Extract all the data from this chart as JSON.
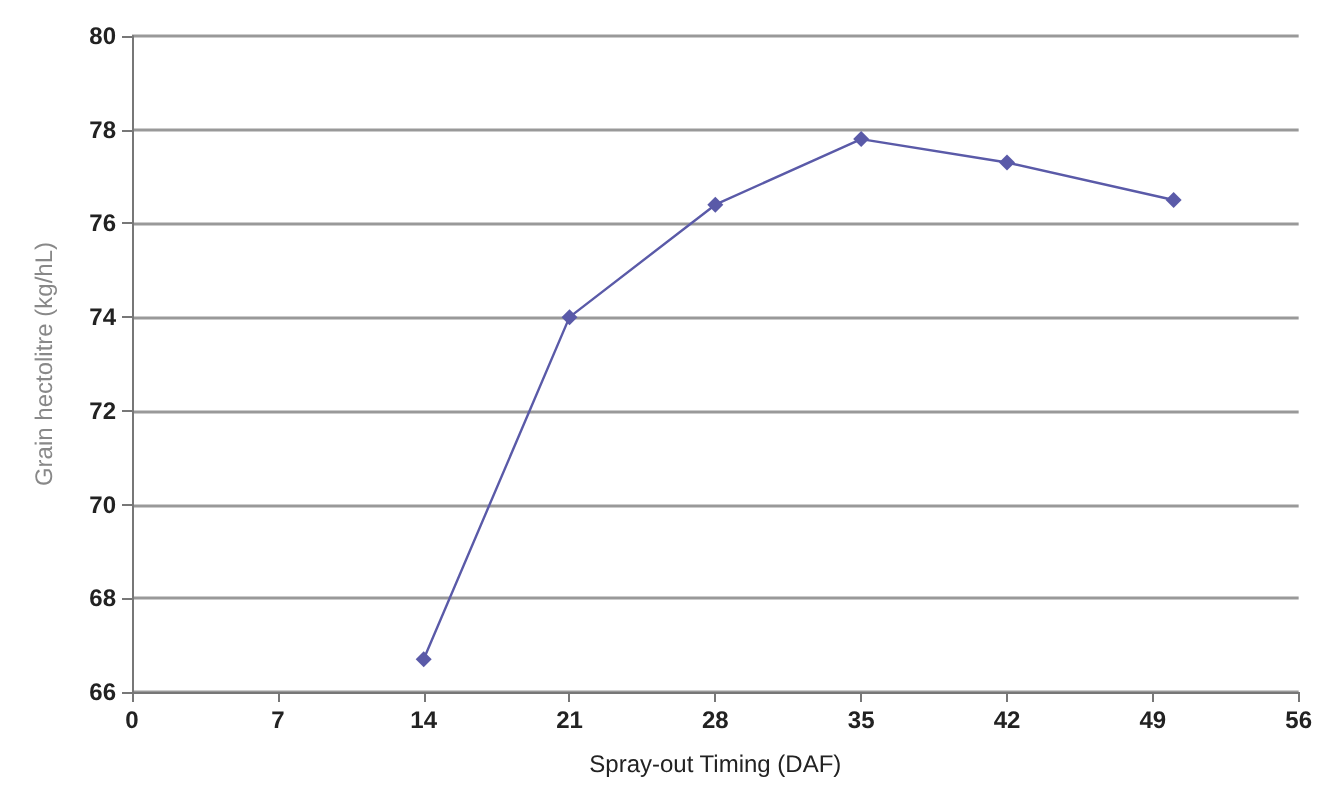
{
  "chart_data": {
    "type": "line",
    "xlabel": "Spray-out Timing (DAF)",
    "ylabel": "Grain hectolitre (kg/hL)",
    "x": [
      14,
      21,
      28,
      35,
      42,
      50
    ],
    "values": [
      66.7,
      74.0,
      76.4,
      77.8,
      77.3,
      76.5
    ],
    "color": "#5a5aa8",
    "xlim": [
      0,
      56
    ],
    "xticks": [
      0,
      7,
      14,
      21,
      28,
      35,
      42,
      49,
      56
    ],
    "ylim": [
      66,
      80
    ],
    "yticks": [
      66,
      68,
      70,
      72,
      74,
      76,
      78,
      80
    ],
    "grid": "y",
    "marker": "diamond",
    "line_style": "solid"
  }
}
